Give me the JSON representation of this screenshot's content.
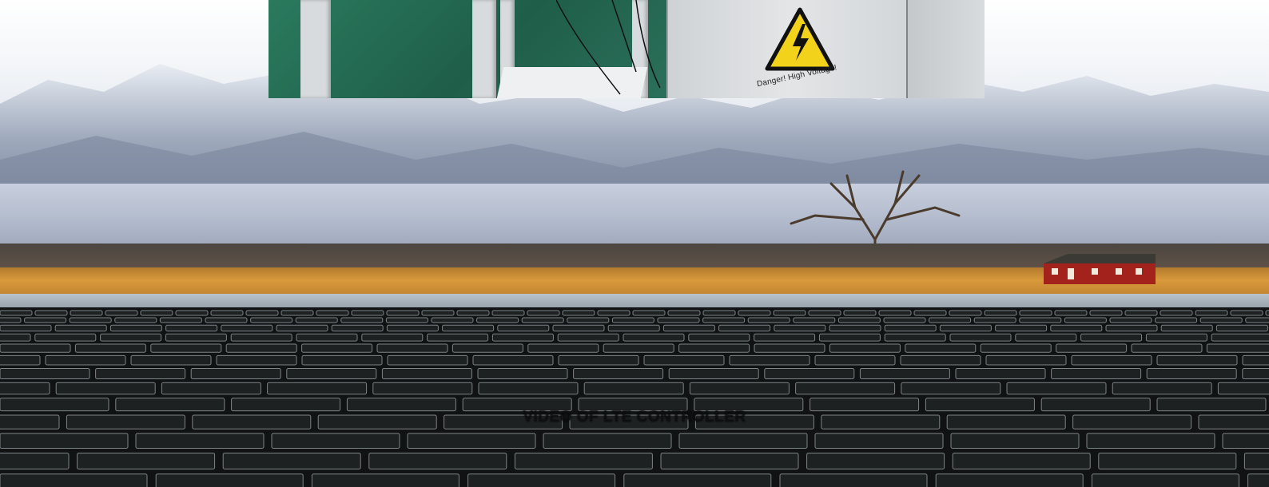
{
  "scene": {
    "description_labels": {
      "background": "mountain-landscape",
      "foreground": "solar-panel-array"
    }
  },
  "inset_photo": {
    "warning_sign_text": "Danger! High Voltage!"
  },
  "caption": {
    "text": "VIDEO OF LTE CONTROLLER"
  },
  "colors": {
    "sky": "#f4f6f9",
    "mountain": "#8f9bb0",
    "field": "#d99a3c",
    "panel": "#101213",
    "warning_yellow": "#f2d21b",
    "barn_red": "#a3231c"
  }
}
